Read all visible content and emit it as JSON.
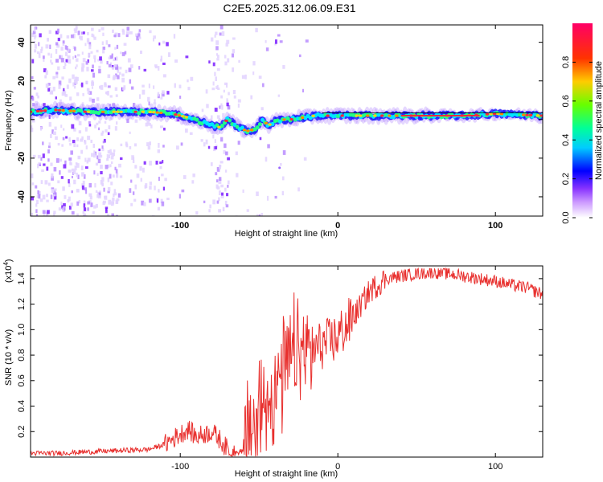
{
  "title": "C2E5.2025.312.06.09.E31",
  "chart_data": [
    {
      "type": "heatmap",
      "title": "C2E5.2025.312.06.09.E31",
      "xlabel": "Height of straight line (km)",
      "ylabel": "Frequency (Hz)",
      "xlim": [
        -195,
        130
      ],
      "ylim": [
        -50,
        49
      ],
      "xticks": [
        -100,
        0,
        100
      ],
      "yticks": [
        -40,
        -20,
        0,
        20,
        40
      ],
      "colorbar": {
        "label": "Normalized spectral amplitude",
        "range": [
          0.0,
          1.0
        ],
        "ticks": [
          0.0,
          0.2,
          0.4,
          0.6,
          0.8
        ],
        "colors": [
          "#ffffff",
          "#cc99ff",
          "#6600ff",
          "#0000ff",
          "#00ccff",
          "#00ff99",
          "#66ff00",
          "#ffcc00",
          "#ff3300",
          "#ff0066"
        ]
      },
      "ridge": {
        "x": [
          -195,
          -180,
          -160,
          -140,
          -120,
          -105,
          -95,
          -88,
          -80,
          -75,
          -70,
          -65,
          -58,
          -52,
          -48,
          -44,
          -40,
          -35,
          -30,
          -25,
          -20,
          -15,
          -10,
          0,
          20,
          50,
          80,
          100,
          130
        ],
        "y": [
          4,
          5,
          4,
          4,
          4,
          3,
          1,
          -1,
          -3,
          -4,
          0,
          -3,
          -6,
          -5,
          0,
          -3,
          -1,
          0,
          0,
          1,
          1,
          2,
          2,
          2,
          2,
          2,
          2,
          3,
          2
        ]
      }
    },
    {
      "type": "line",
      "xlabel": "Height of straight line (km)",
      "ylabel": "SNR (10 * v/v)",
      "scale_label": "(x10",
      "scale_exp": "4",
      "scale_close": ")",
      "xlim": [
        -195,
        130
      ],
      "ylim": [
        0,
        1.5
      ],
      "xticks": [
        -100,
        0,
        100
      ],
      "yticks": [
        0.2,
        0.4,
        0.6,
        0.8,
        1.0,
        1.2,
        1.4
      ],
      "series": [
        {
          "name": "SNR",
          "color": "#e8302e",
          "x": [
            -195,
            -180,
            -160,
            -140,
            -120,
            -110,
            -100,
            -95,
            -90,
            -85,
            -80,
            -75,
            -70,
            -65,
            -60,
            -55,
            -50,
            -45,
            -40,
            -35,
            -30,
            -25,
            -20,
            -15,
            -10,
            -5,
            0,
            5,
            10,
            20,
            30,
            40,
            50,
            60,
            70,
            80,
            90,
            100,
            110,
            120,
            125,
            130
          ],
          "y": [
            0.03,
            0.03,
            0.04,
            0.05,
            0.06,
            0.1,
            0.18,
            0.22,
            0.16,
            0.18,
            0.2,
            0.14,
            0.06,
            0.03,
            0.05,
            0.18,
            0.35,
            0.45,
            0.55,
            0.65,
            0.75,
            0.8,
            0.82,
            0.85,
            0.88,
            0.9,
            0.95,
            1.02,
            1.1,
            1.3,
            1.4,
            1.42,
            1.44,
            1.45,
            1.44,
            1.42,
            1.4,
            1.38,
            1.35,
            1.33,
            1.3,
            1.28
          ]
        }
      ]
    }
  ]
}
